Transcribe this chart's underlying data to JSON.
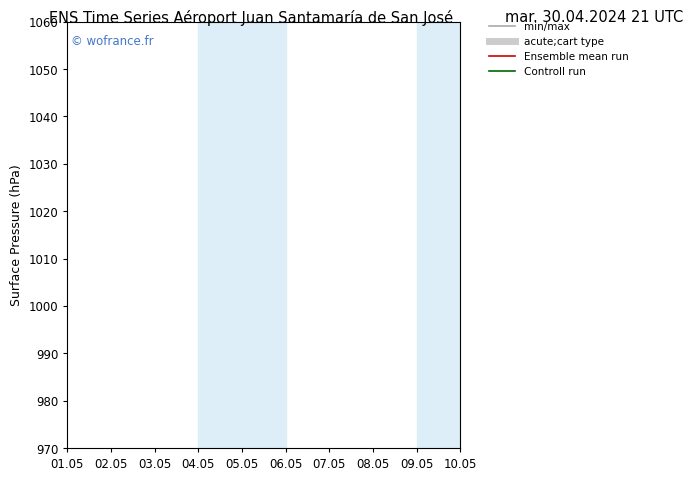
{
  "title": "ENS Time Series Aéroport Juan Santamaría de San José",
  "subtitle": "mar. 30.04.2024 21 UTC",
  "ylabel": "Surface Pressure (hPa)",
  "ylim": [
    970,
    1060
  ],
  "yticks": [
    970,
    980,
    990,
    1000,
    1010,
    1020,
    1030,
    1040,
    1050,
    1060
  ],
  "xlabels": [
    "01.05",
    "02.05",
    "03.05",
    "04.05",
    "05.05",
    "06.05",
    "07.05",
    "08.05",
    "09.05",
    "10.05"
  ],
  "xmin": 0,
  "xmax": 9,
  "shaded_bands": [
    {
      "xmin": 3.0,
      "xmax": 4.0,
      "color": "#ddeef8",
      "alpha": 1.0
    },
    {
      "xmin": 4.0,
      "xmax": 5.0,
      "color": "#ddeef8",
      "alpha": 1.0
    },
    {
      "xmin": 8.0,
      "xmax": 8.5,
      "color": "#ddeef8",
      "alpha": 1.0
    },
    {
      "xmin": 8.5,
      "xmax": 9.0,
      "color": "#ddeef8",
      "alpha": 1.0
    }
  ],
  "legend_entries": [
    {
      "label": "min/max",
      "color": "#aaaaaa",
      "lw": 1.2,
      "linestyle": "-"
    },
    {
      "label": "acute;cart type",
      "color": "#cccccc",
      "lw": 5,
      "linestyle": "-"
    },
    {
      "label": "Ensemble mean run",
      "color": "#cc0000",
      "lw": 1.2,
      "linestyle": "-"
    },
    {
      "label": "Controll run",
      "color": "#006600",
      "lw": 1.2,
      "linestyle": "-"
    }
  ],
  "watermark": "© wofrance.fr",
  "watermark_color": "#4477cc",
  "bg_color": "#ffffff",
  "plot_bg_color": "#ffffff",
  "title_fontsize": 10.5,
  "ylabel_fontsize": 9,
  "tick_fontsize": 8.5,
  "legend_fontsize": 7.5
}
